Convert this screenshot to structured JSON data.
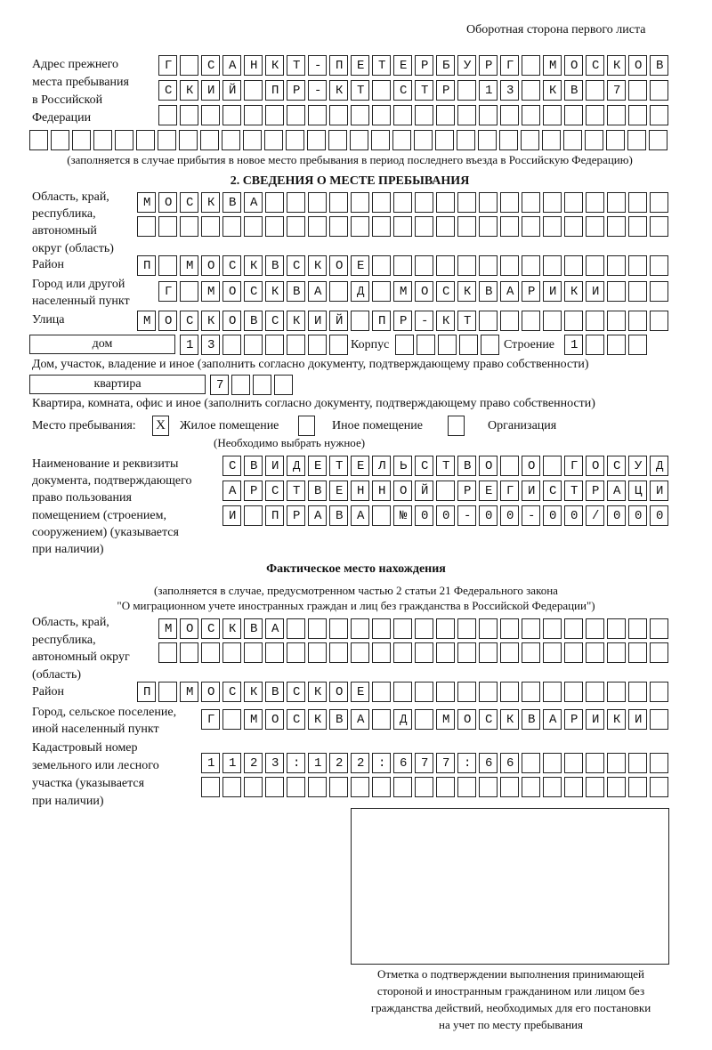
{
  "header": "Оборотная сторона первого листа",
  "prev_address": {
    "label": [
      "Адрес прежнего",
      "места пребывания",
      "в Российской",
      "Федерации"
    ],
    "rows": [
      "Г САНКТ-ПЕТЕРБУРГ МОСКОВ",
      "СКИЙ ПР-КТ СТР 13 КВ 7  ",
      "                        ",
      "                              "
    ],
    "note": "(заполняется в случае прибытия в новое место пребывания в период последнего въезда в Российскую Федерацию)"
  },
  "section2": {
    "title": "2. СВЕДЕНИЯ О МЕСТЕ ПРЕБЫВАНИЯ",
    "region_label": [
      "Область, край,",
      "республика,",
      "автономный",
      "округ (область)"
    ],
    "region_rows": [
      "МОСКВА                   ",
      "                         "
    ],
    "district_label": "Район",
    "district": "П МОСКВСКОЕ              ",
    "city_label": [
      "Город или другой",
      "населенный пункт"
    ],
    "city": "Г МОСКВА Д МОСКВАРИКИ   ",
    "street_label": "Улица",
    "street": "МОСКОВСКИЙ ПР-КТ         ",
    "house_type": "дом",
    "house": "13      ",
    "korpus_label": "Корпус",
    "korpus": "     ",
    "building_label": "Строение",
    "building": "1   ",
    "house_note": "Дом, участок, владение и иное (заполнить согласно документу, подтверждающему право собственности)",
    "flat_type": "квартира",
    "flat": "7   ",
    "flat_note": "Квартира, комната, офис и иное (заполнить согласно документу, подтверждающему право собственности)",
    "stay_label": "Место пребывания:",
    "stay_options": [
      {
        "label": "Жилое помещение",
        "mark": "Х"
      },
      {
        "label": "Иное помещение",
        "mark": ""
      },
      {
        "label": "Организация",
        "mark": ""
      }
    ],
    "stay_note": "(Необходимо выбрать нужное)",
    "doc_label": [
      "Наименование и реквизиты",
      "документа, подтверждающего",
      "право пользования",
      "помещением (строением,",
      "сооружением) (указывается",
      "при наличии)"
    ],
    "doc_rows": [
      "СВИДЕТЕЛЬСТВО О ГОСУД",
      "АРСТВЕННОЙ РЕГИСТРАЦИ",
      "И ПРАВА №00-00-00/000"
    ]
  },
  "actual": {
    "title": "Фактическое место нахождения",
    "note": [
      "(заполняется в случае, предусмотренном частью 2 статьи 21 Федерального закона",
      "\"О миграционном учете иностранных граждан и лиц без гражданства в Российской Федерации\")"
    ],
    "region_label": [
      "Область, край,",
      "республика,",
      "автономный округ",
      "(область)"
    ],
    "region_rows": [
      "МОСКВА                  ",
      "                        "
    ],
    "district_label": "Район",
    "district": "П МОСКВСКОЕ              ",
    "city_label": [
      "Город, сельское поселение,",
      "иной населенный пункт"
    ],
    "city": "Г МОСКВА Д МОСКВАРИКИ ",
    "cadastre_label": [
      "Кадастровый номер",
      "земельного или лесного",
      "участка (указывается",
      "при наличии)"
    ],
    "cadastre_rows": [
      "1123:122:677:66       ",
      "                      "
    ]
  },
  "stamp_caption": [
    "Отметка о подтверждении выполнения принимающей",
    "стороной и иностранным гражданином или лицом без",
    "гражданства действий, необходимых для его постановки",
    "на учет по месту пребывания"
  ]
}
